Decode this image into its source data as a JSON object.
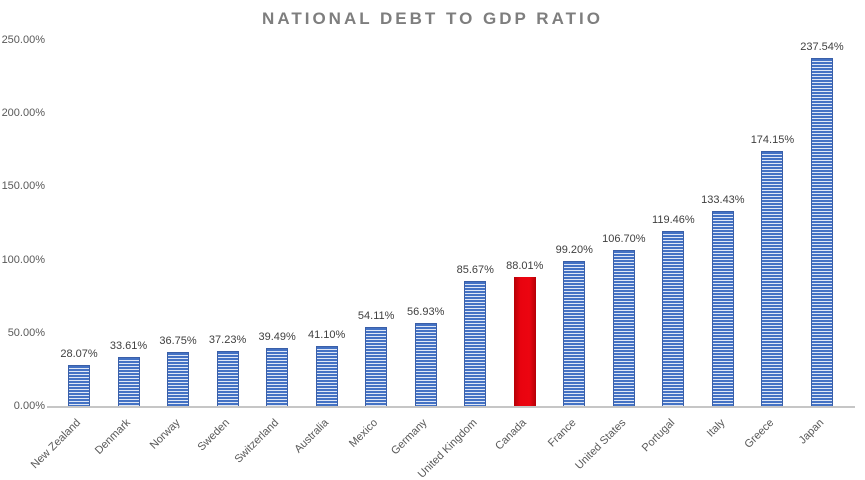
{
  "chart_data": {
    "type": "bar",
    "title": "NATIONAL DEBT TO GDP RATIO",
    "categories": [
      "New Zealand",
      "Denmark",
      "Norway",
      "Sweden",
      "Switzerland",
      "Australia",
      "Mexico",
      "Germany",
      "United Kingdom",
      "Canada",
      "France",
      "United States",
      "Portugal",
      "Italy",
      "Greece",
      "Japan"
    ],
    "values": [
      28.07,
      33.61,
      36.75,
      37.23,
      39.49,
      41.1,
      54.11,
      56.93,
      85.67,
      88.01,
      99.2,
      106.7,
      119.46,
      133.43,
      174.15,
      237.54
    ],
    "data_labels": [
      "28.07%",
      "33.61%",
      "36.75%",
      "37.23%",
      "39.49%",
      "41.10%",
      "54.11%",
      "56.93%",
      "85.67%",
      "88.01%",
      "99.20%",
      "106.70%",
      "119.46%",
      "133.43%",
      "174.15%",
      "237.54%"
    ],
    "highlight_category": "Canada",
    "y_ticks": [
      {
        "value": 0,
        "label": "0.00%"
      },
      {
        "value": 50,
        "label": "50.00%"
      },
      {
        "value": 100,
        "label": "100.00%"
      },
      {
        "value": 150,
        "label": "150.00%"
      },
      {
        "value": 200,
        "label": "200.00%"
      },
      {
        "value": 250,
        "label": "250.00%"
      }
    ],
    "ylim": [
      0,
      250
    ],
    "xlabel": "",
    "ylabel": "",
    "grid": false,
    "legend_position": "none"
  },
  "colors": {
    "bar_fill": "#4472C4",
    "bar_stripe": "#DFE7F6",
    "bar_border": "#3A5FA8",
    "highlight_fill": "#E9030F",
    "highlight_edge": "#B50006",
    "title_text": "#7E7E7E",
    "axis_text": "#595959",
    "value_label_text": "#404040",
    "baseline": "#C6C6C6",
    "background": "#FFFFFF"
  }
}
